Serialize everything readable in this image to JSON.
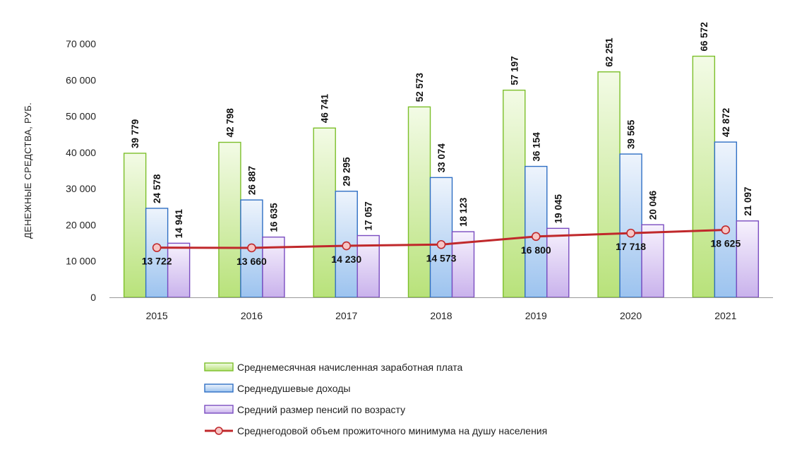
{
  "chart_data": {
    "type": "bar",
    "title": "",
    "xlabel": "",
    "ylabel": "ДЕНЕЖНЫЕ СРЕДСТВА, РУБ.",
    "ylim": [
      0,
      70000
    ],
    "yticks": [
      "0",
      "10 000",
      "20 000",
      "30 000",
      "40 000",
      "50 000",
      "60 000",
      "70 000"
    ],
    "categories": [
      "2015",
      "2016",
      "2017",
      "2018",
      "2019",
      "2020",
      "2021"
    ],
    "grid": false,
    "legend_position": "bottom",
    "series": [
      {
        "name": "Среднемесячная начисленная заработная плата",
        "kind": "bar",
        "color": "#9bd34c",
        "values": [
          39779,
          42798,
          46741,
          52573,
          57197,
          62251,
          66572
        ],
        "labels": [
          "39 779",
          "42 798",
          "46 741",
          "52 573",
          "57 197",
          "62 251",
          "66 572"
        ]
      },
      {
        "name": "Среднедушевые доходы",
        "kind": "bar",
        "color": "#4a86d4",
        "values": [
          24578,
          26887,
          29295,
          33074,
          36154,
          39565,
          42872
        ],
        "labels": [
          "24 578",
          "26 887",
          "29 295",
          "33 074",
          "36 154",
          "39 565",
          "42 872"
        ]
      },
      {
        "name": "Средний размер пенсий по возрасту",
        "kind": "bar",
        "color": "#9a6fd0",
        "values": [
          14941,
          16635,
          17057,
          18123,
          19045,
          20046,
          21097
        ],
        "labels": [
          "14 941",
          "16 635",
          "17 057",
          "18 123",
          "19 045",
          "20 046",
          "21 097"
        ]
      },
      {
        "name": "Среднегодовой объем прожиточного минимума на душу населения",
        "kind": "line",
        "color": "#c0282b",
        "values": [
          13722,
          13660,
          14230,
          14573,
          16800,
          17718,
          18625
        ],
        "labels": [
          "13 722",
          "13 660",
          "14 230",
          "14 573",
          "16 800",
          "17 718",
          "18 625"
        ]
      }
    ]
  }
}
